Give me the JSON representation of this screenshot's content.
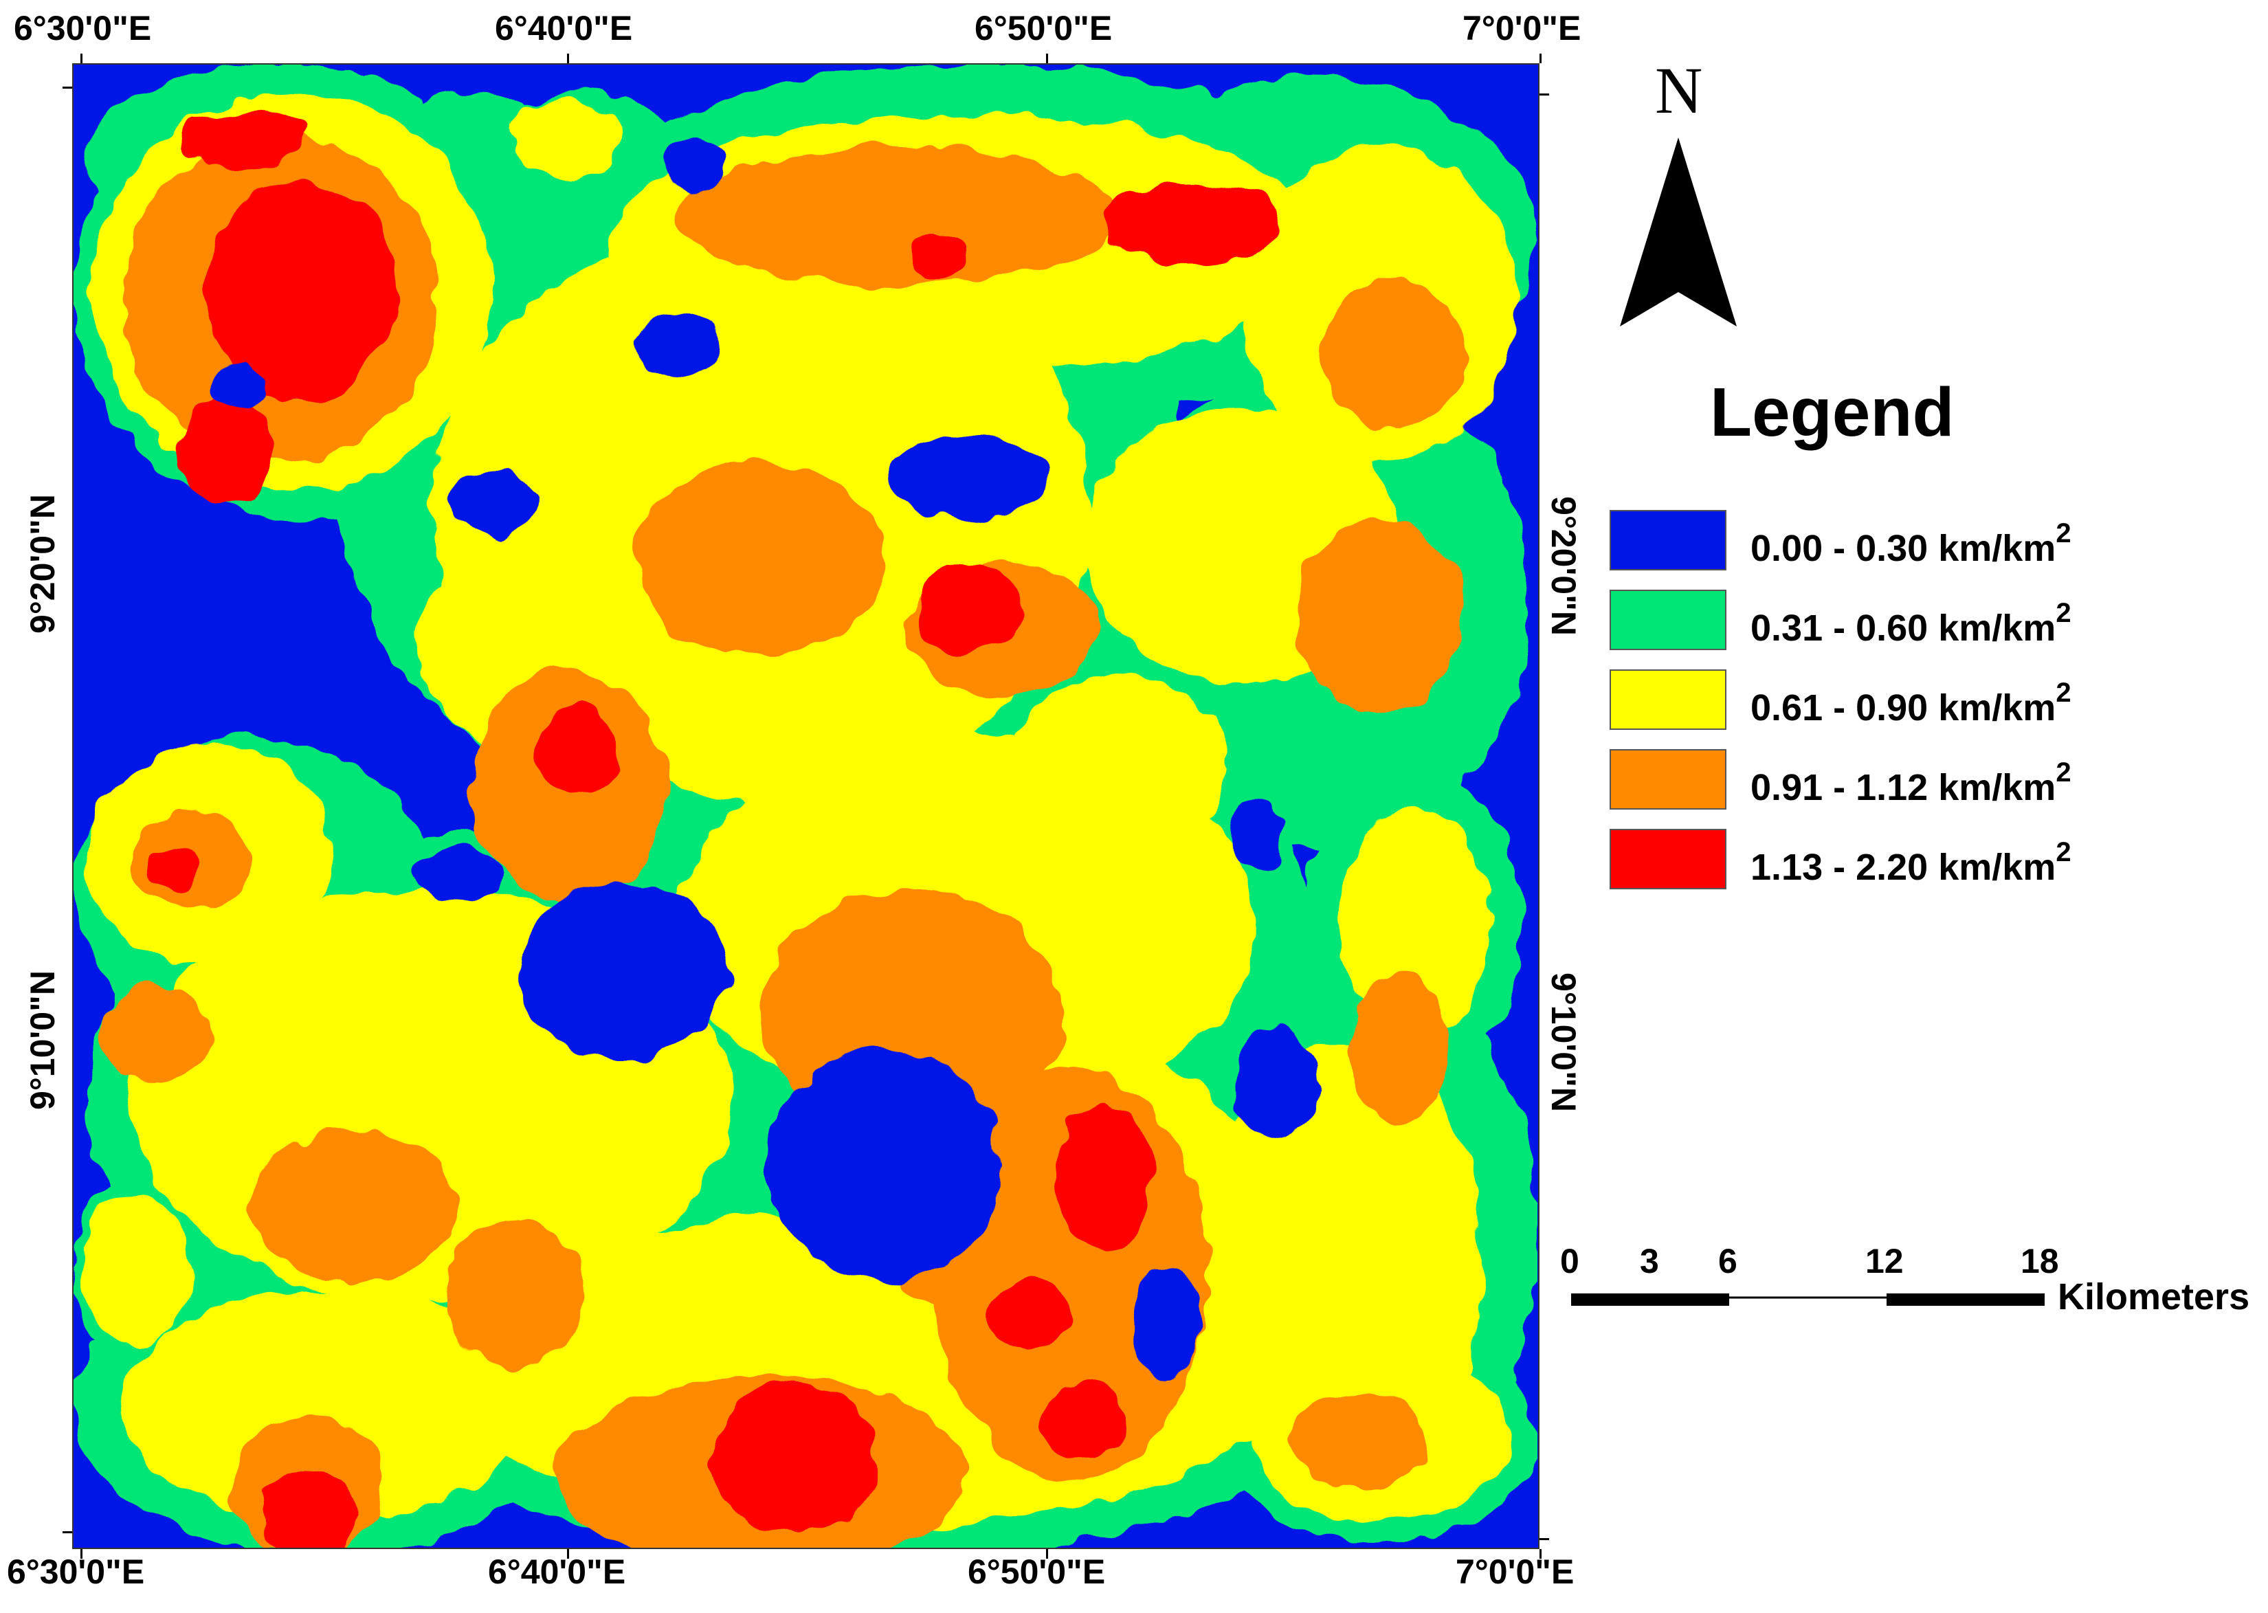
{
  "lon_labels_top": [
    "6°30'0\"E",
    "6°40'0\"E",
    "6°50'0\"E",
    "7°0'0\"E"
  ],
  "lon_labels_bottom": [
    "6°30'0\"E",
    "6°40'0\"E",
    "6°50'0\"E",
    "7°0'0\"E"
  ],
  "lat_labels_left": [
    "9°20'0\"N",
    "9°10'0\"N"
  ],
  "lat_labels_right": [
    "9°20'0\"N",
    "9°10'0\"N"
  ],
  "north_arrow": {
    "letter": "N",
    "icon": "north-arrow-icon"
  },
  "legend": {
    "title": "Legend",
    "items": [
      {
        "range": "0.00 - 0.30",
        "unit": "km/km",
        "power": "2",
        "color": "#0016E6"
      },
      {
        "range": "0.31 - 0.60",
        "unit": "km/km",
        "power": "2",
        "color": "#00E676"
      },
      {
        "range": "0.61 - 0.90",
        "unit": "km/km",
        "power": "2",
        "color": "#FFFF00"
      },
      {
        "range": "0.91 - 1.12",
        "unit": "km/km",
        "power": "2",
        "color": "#FF8A00"
      },
      {
        "range": "1.13 - 2.20",
        "unit": "km/km",
        "power": "2",
        "color": "#FF0000"
      }
    ]
  },
  "scale_bar": {
    "ticks": [
      "0",
      "3",
      "6",
      "12",
      "18"
    ],
    "unit": "Kilometers"
  }
}
